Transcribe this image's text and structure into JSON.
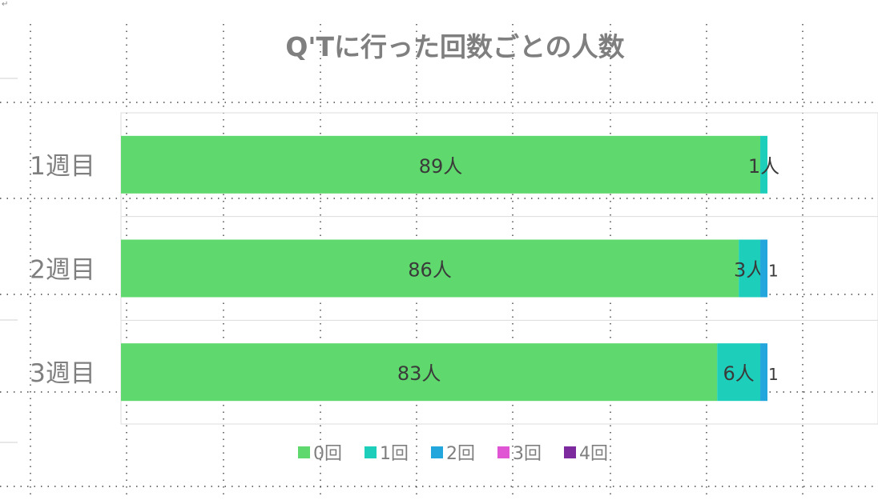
{
  "chart_data": {
    "type": "bar",
    "orientation": "horizontal",
    "stacked": true,
    "title": "Q'Tに行った回数ごとの人数",
    "categories": [
      "1週目",
      "2週目",
      "3週目"
    ],
    "series": [
      {
        "name": "0回",
        "color": "#5fd96d",
        "values": [
          89,
          86,
          83
        ],
        "labels": [
          "89人",
          "86人",
          "83人"
        ]
      },
      {
        "name": "1回",
        "color": "#1dcfbb",
        "values": [
          1,
          3,
          6
        ],
        "labels": [
          "1人",
          "3人",
          "6人"
        ]
      },
      {
        "name": "2回",
        "color": "#23a6dc",
        "values": [
          0,
          1,
          1
        ],
        "labels": [
          "",
          "1",
          "1"
        ]
      },
      {
        "name": "3回",
        "color": "#e055d4",
        "values": [
          0,
          0,
          0
        ],
        "labels": [
          "",
          "",
          ""
        ]
      },
      {
        "name": "4回",
        "color": "#7d2a9e",
        "values": [
          0,
          0,
          0
        ],
        "labels": [
          "",
          "",
          ""
        ]
      }
    ],
    "xlim": [
      0,
      90
    ],
    "grid": true,
    "legend_position": "bottom"
  },
  "paragraph_mark": "↵"
}
